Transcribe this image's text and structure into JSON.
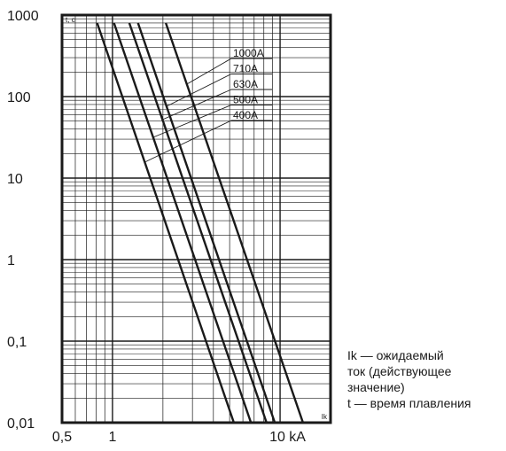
{
  "chart_data": {
    "type": "line",
    "xscale": "log",
    "yscale": "log",
    "xlim": [
      0.5,
      20
    ],
    "ylim": [
      0.01,
      1000
    ],
    "grid": true,
    "y_axis_corner_label": "t, c",
    "x_axis_corner_label": "Ik",
    "x_ticks": [
      {
        "value": 0.5,
        "label": "0,5"
      },
      {
        "value": 1,
        "label": "1"
      },
      {
        "value": 10,
        "label": "10 kA"
      }
    ],
    "y_ticks": [
      {
        "value": 1000,
        "label": "1000"
      },
      {
        "value": 100,
        "label": "100"
      },
      {
        "value": 10,
        "label": "10"
      },
      {
        "value": 1,
        "label": "1"
      },
      {
        "value": 0.1,
        "label": "0,1"
      },
      {
        "value": 0.01,
        "label": "0,01"
      }
    ],
    "series": [
      {
        "name": "400A",
        "points": [
          [
            0.81,
            800
          ],
          [
            5.3,
            0.01
          ]
        ]
      },
      {
        "name": "500A",
        "points": [
          [
            1.02,
            800
          ],
          [
            6.7,
            0.01
          ]
        ]
      },
      {
        "name": "630A",
        "points": [
          [
            1.26,
            800
          ],
          [
            8.3,
            0.01
          ]
        ]
      },
      {
        "name": "710A",
        "points": [
          [
            1.42,
            800
          ],
          [
            9.3,
            0.01
          ]
        ]
      },
      {
        "name": "1000A",
        "points": [
          [
            2.08,
            800
          ],
          [
            13.7,
            0.01
          ]
        ]
      }
    ],
    "legend": {
      "placement": "top-right",
      "order": [
        "1000A",
        "710A",
        "630A",
        "500A",
        "400A"
      ]
    }
  },
  "notes": {
    "line1": "Ik — ожидаемый",
    "line2": "ток (действующее",
    "line3": "значение)",
    "line4": "t — время плавления"
  },
  "colors": {
    "ink": "#1a1a1a",
    "background": "#ffffff"
  }
}
